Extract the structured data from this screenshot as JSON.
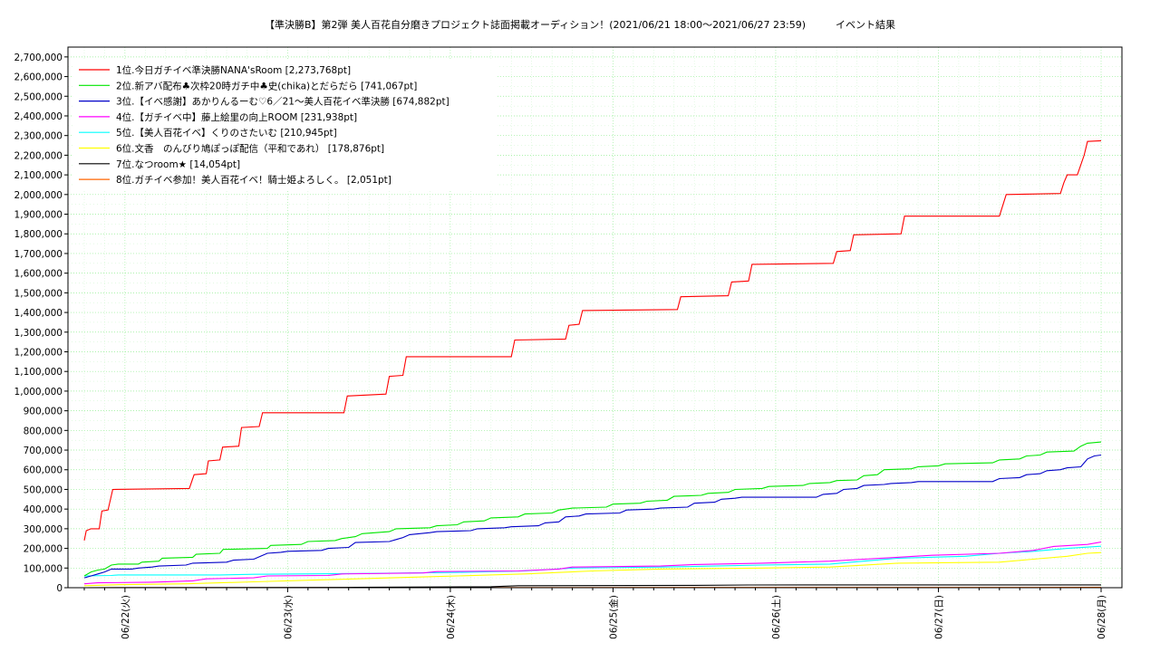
{
  "chart_data": {
    "type": "line",
    "title": "【準決勝B】第2弾 美人百花自分磨きプロジェクト誌面掲載オーディション！(2021/06/21 18:00〜2021/06/27 23:59)　　　イベント結果",
    "xlabel": "",
    "ylabel": "",
    "ylim": [
      0,
      2750000
    ],
    "y_ticks": [
      "0",
      "100,000",
      "200,000",
      "300,000",
      "400,000",
      "500,000",
      "600,000",
      "700,000",
      "800,000",
      "900,000",
      "1,000,000",
      "1,100,000",
      "1,200,000",
      "1,300,000",
      "1,400,000",
      "1,500,000",
      "1,600,000",
      "1,700,000",
      "1,800,000",
      "1,900,000",
      "2,000,000",
      "2,100,000",
      "2,200,000",
      "2,300,000",
      "2,400,000",
      "2,500,000",
      "2,600,000",
      "2,700,000"
    ],
    "x_range_hours": [
      "2021/06/21 18:00",
      "2021/06/28 00:30"
    ],
    "x_tick_labels": [
      "06/22(火)",
      "06/23(水)",
      "06/24(木)",
      "06/25(金)",
      "06/26(土)",
      "06/27(日)",
      "06/28(月)"
    ],
    "grid": true,
    "legend_placement": "top-left",
    "series": [
      {
        "name": "1位.今日ガチイベ準決勝NANA'sRoom [2,273,768pt]",
        "color": "#ff0000",
        "points": [
          [
            0,
            240000
          ],
          [
            0.3,
            290000
          ],
          [
            1,
            300000
          ],
          [
            2.2,
            300000
          ],
          [
            2.6,
            390000
          ],
          [
            3.5,
            395000
          ],
          [
            4.2,
            500000
          ],
          [
            15.5,
            505000
          ],
          [
            16.2,
            575000
          ],
          [
            18,
            580000
          ],
          [
            18.3,
            645000
          ],
          [
            20,
            650000
          ],
          [
            20.4,
            715000
          ],
          [
            22.8,
            720000
          ],
          [
            23.2,
            815000
          ],
          [
            25.8,
            820000
          ],
          [
            26.3,
            890000
          ],
          [
            38.3,
            890000
          ],
          [
            38.8,
            975000
          ],
          [
            44.5,
            985000
          ],
          [
            45,
            1075000
          ],
          [
            47,
            1080000
          ],
          [
            47.5,
            1175000
          ],
          [
            63,
            1175000
          ],
          [
            63.5,
            1260000
          ],
          [
            71,
            1265000
          ],
          [
            71.5,
            1335000
          ],
          [
            73,
            1340000
          ],
          [
            73.5,
            1410000
          ],
          [
            87.5,
            1415000
          ],
          [
            88,
            1480000
          ],
          [
            95,
            1485000
          ],
          [
            95.5,
            1555000
          ],
          [
            98,
            1560000
          ],
          [
            98.5,
            1645000
          ],
          [
            110.5,
            1650000
          ],
          [
            111,
            1710000
          ],
          [
            113,
            1715000
          ],
          [
            113.5,
            1795000
          ],
          [
            120.5,
            1800000
          ],
          [
            121,
            1890000
          ],
          [
            135,
            1890000
          ],
          [
            136,
            2000000
          ],
          [
            144,
            2005000
          ],
          [
            144.5,
            2060000
          ],
          [
            145,
            2100000
          ],
          [
            146.5,
            2100000
          ],
          [
            147.5,
            2200000
          ],
          [
            148,
            2270000
          ],
          [
            150,
            2273768
          ]
        ]
      },
      {
        "name": "2位.新アバ配布♣次枠20時ガチ中♣史(chika)とだらだら [741,067pt]",
        "color": "#00e600",
        "points": [
          [
            0,
            60000
          ],
          [
            1,
            80000
          ],
          [
            2,
            90000
          ],
          [
            3,
            95000
          ],
          [
            4,
            115000
          ],
          [
            5,
            120000
          ],
          [
            8,
            120000
          ],
          [
            8.5,
            130000
          ],
          [
            11,
            135000
          ],
          [
            11.5,
            150000
          ],
          [
            16,
            155000
          ],
          [
            16.5,
            170000
          ],
          [
            20,
            175000
          ],
          [
            20.5,
            195000
          ],
          [
            27,
            200000
          ],
          [
            27.5,
            215000
          ],
          [
            32,
            220000
          ],
          [
            33,
            235000
          ],
          [
            37,
            240000
          ],
          [
            38,
            250000
          ],
          [
            40,
            260000
          ],
          [
            41,
            275000
          ],
          [
            45,
            285000
          ],
          [
            46,
            300000
          ],
          [
            51,
            305000
          ],
          [
            52,
            315000
          ],
          [
            55,
            320000
          ],
          [
            56,
            335000
          ],
          [
            59,
            340000
          ],
          [
            60,
            355000
          ],
          [
            64,
            360000
          ],
          [
            65,
            375000
          ],
          [
            69,
            380000
          ],
          [
            70,
            395000
          ],
          [
            71,
            400000
          ],
          [
            72,
            405000
          ],
          [
            77,
            410000
          ],
          [
            78,
            425000
          ],
          [
            82,
            430000
          ],
          [
            83,
            440000
          ],
          [
            86,
            445000
          ],
          [
            87,
            465000
          ],
          [
            91,
            470000
          ],
          [
            92,
            480000
          ],
          [
            95,
            485000
          ],
          [
            96,
            500000
          ],
          [
            100,
            505000
          ],
          [
            101,
            515000
          ],
          [
            106,
            520000
          ],
          [
            107,
            530000
          ],
          [
            110,
            535000
          ],
          [
            111,
            545000
          ],
          [
            114,
            548000
          ],
          [
            115,
            570000
          ],
          [
            117,
            575000
          ],
          [
            118,
            600000
          ],
          [
            122,
            605000
          ],
          [
            123,
            615000
          ],
          [
            126,
            620000
          ],
          [
            127,
            630000
          ],
          [
            134,
            635000
          ],
          [
            135,
            650000
          ],
          [
            138,
            655000
          ],
          [
            139,
            670000
          ],
          [
            141,
            675000
          ],
          [
            142,
            690000
          ],
          [
            146,
            695000
          ],
          [
            147,
            720000
          ],
          [
            148,
            735000
          ],
          [
            150,
            741067
          ]
        ]
      },
      {
        "name": "3位.【イベ感謝】あかりんるーむ♡6／21〜美人百花イベ準決勝 [674,882pt]",
        "color": "#0000c8",
        "points": [
          [
            0,
            50000
          ],
          [
            1,
            60000
          ],
          [
            2,
            70000
          ],
          [
            3,
            80000
          ],
          [
            4,
            95000
          ],
          [
            7,
            95000
          ],
          [
            8,
            100000
          ],
          [
            10,
            105000
          ],
          [
            11,
            110000
          ],
          [
            15,
            115000
          ],
          [
            16,
            125000
          ],
          [
            21,
            130000
          ],
          [
            22,
            140000
          ],
          [
            25,
            145000
          ],
          [
            26,
            160000
          ],
          [
            27,
            175000
          ],
          [
            29,
            180000
          ],
          [
            30,
            185000
          ],
          [
            35,
            190000
          ],
          [
            36,
            200000
          ],
          [
            39,
            205000
          ],
          [
            40,
            230000
          ],
          [
            45,
            235000
          ],
          [
            46,
            245000
          ],
          [
            47,
            255000
          ],
          [
            48,
            270000
          ],
          [
            51,
            280000
          ],
          [
            52,
            285000
          ],
          [
            57,
            290000
          ],
          [
            58,
            300000
          ],
          [
            62,
            305000
          ],
          [
            63,
            310000
          ],
          [
            67,
            315000
          ],
          [
            68,
            330000
          ],
          [
            70,
            335000
          ],
          [
            71,
            360000
          ],
          [
            73,
            365000
          ],
          [
            74,
            375000
          ],
          [
            79,
            380000
          ],
          [
            80,
            395000
          ],
          [
            84,
            400000
          ],
          [
            85,
            405000
          ],
          [
            89,
            410000
          ],
          [
            90,
            430000
          ],
          [
            93,
            435000
          ],
          [
            94,
            450000
          ],
          [
            96,
            455000
          ],
          [
            97,
            460000
          ],
          [
            108,
            460000
          ],
          [
            109,
            475000
          ],
          [
            111,
            480000
          ],
          [
            112,
            500000
          ],
          [
            114,
            505000
          ],
          [
            115,
            520000
          ],
          [
            118,
            525000
          ],
          [
            119,
            530000
          ],
          [
            122,
            535000
          ],
          [
            123,
            540000
          ],
          [
            134,
            540000
          ],
          [
            135,
            555000
          ],
          [
            138,
            560000
          ],
          [
            139,
            575000
          ],
          [
            141,
            580000
          ],
          [
            142,
            595000
          ],
          [
            144,
            600000
          ],
          [
            145,
            610000
          ],
          [
            147,
            615000
          ],
          [
            148,
            655000
          ],
          [
            149,
            670000
          ],
          [
            150,
            674882
          ]
        ]
      },
      {
        "name": "4位.【ガチイベ中】藤上絵里の向上ROOM [231,938pt]",
        "color": "#ff00ff",
        "points": [
          [
            0,
            20000
          ],
          [
            2,
            25000
          ],
          [
            10,
            28000
          ],
          [
            16,
            35000
          ],
          [
            18,
            45000
          ],
          [
            25,
            50000
          ],
          [
            27,
            60000
          ],
          [
            36,
            62000
          ],
          [
            38,
            70000
          ],
          [
            50,
            75000
          ],
          [
            52,
            82000
          ],
          [
            64,
            85000
          ],
          [
            70,
            95000
          ],
          [
            72,
            105000
          ],
          [
            85,
            110000
          ],
          [
            90,
            118000
          ],
          [
            100,
            125000
          ],
          [
            110,
            135000
          ],
          [
            115,
            145000
          ],
          [
            120,
            155000
          ],
          [
            125,
            165000
          ],
          [
            135,
            175000
          ],
          [
            140,
            190000
          ],
          [
            143,
            210000
          ],
          [
            148,
            220000
          ],
          [
            150,
            231938
          ]
        ]
      },
      {
        "name": "5位.【美人百花イベ】くりのさたいむ [210,945pt]",
        "color": "#00ffff",
        "points": [
          [
            0,
            60000
          ],
          [
            4,
            62000
          ],
          [
            5,
            65000
          ],
          [
            20,
            65000
          ],
          [
            25,
            68000
          ],
          [
            40,
            72000
          ],
          [
            55,
            78000
          ],
          [
            65,
            85000
          ],
          [
            72,
            100000
          ],
          [
            85,
            105000
          ],
          [
            100,
            115000
          ],
          [
            110,
            120000
          ],
          [
            120,
            150000
          ],
          [
            130,
            160000
          ],
          [
            135,
            175000
          ],
          [
            140,
            185000
          ],
          [
            145,
            200000
          ],
          [
            150,
            210945
          ]
        ]
      },
      {
        "name": "6位.文香　のんびり鳩ぽっぽ配信（平和であれ） [178,876pt]",
        "color": "#ffff00",
        "points": [
          [
            0,
            10000
          ],
          [
            5,
            15000
          ],
          [
            15,
            20000
          ],
          [
            25,
            30000
          ],
          [
            35,
            40000
          ],
          [
            50,
            55000
          ],
          [
            65,
            70000
          ],
          [
            75,
            85000
          ],
          [
            85,
            95000
          ],
          [
            100,
            100000
          ],
          [
            110,
            105000
          ],
          [
            120,
            125000
          ],
          [
            135,
            130000
          ],
          [
            140,
            145000
          ],
          [
            145,
            160000
          ],
          [
            148,
            175000
          ],
          [
            150,
            178876
          ]
        ]
      },
      {
        "name": "7位.なつroom★ [14,054pt]",
        "color": "#000000",
        "points": [
          [
            0,
            0
          ],
          [
            40,
            2000
          ],
          [
            60,
            5000
          ],
          [
            64,
            10000
          ],
          [
            90,
            12000
          ],
          [
            98,
            14000
          ],
          [
            150,
            14054
          ]
        ]
      },
      {
        "name": "8位.ガチイベ参加！美人百花イベ！騎士姫よろしく。 [2,051pt]",
        "color": "#ff6600",
        "points": [
          [
            0,
            0
          ],
          [
            30,
            500
          ],
          [
            60,
            1000
          ],
          [
            100,
            1500
          ],
          [
            150,
            2051
          ]
        ]
      }
    ]
  }
}
